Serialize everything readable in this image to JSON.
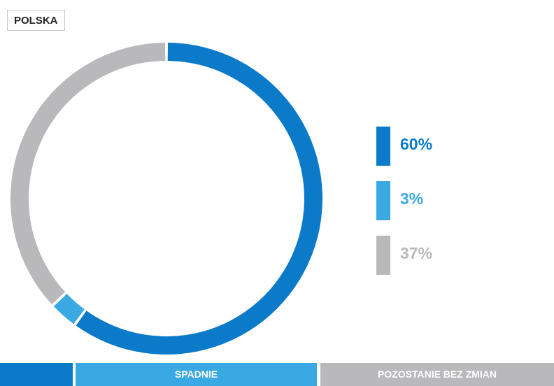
{
  "badge": {
    "country": "POLSKA"
  },
  "colors": {
    "blue": "#0a7ac9",
    "light_blue": "#3aa9e3",
    "gray": "#b9b9bb"
  },
  "chart_data": {
    "type": "pie",
    "series": [
      {
        "label": "60%",
        "value": 60,
        "color": "#0a7ac9"
      },
      {
        "label": "3%",
        "value": 3,
        "color": "#3aa9e3"
      },
      {
        "label": "37%",
        "value": 37,
        "color": "#b9b9bb"
      }
    ]
  },
  "footer": {
    "labels": [
      "",
      "SPADNIE",
      "POZOSTANIE BEZ ZMIAN"
    ]
  }
}
